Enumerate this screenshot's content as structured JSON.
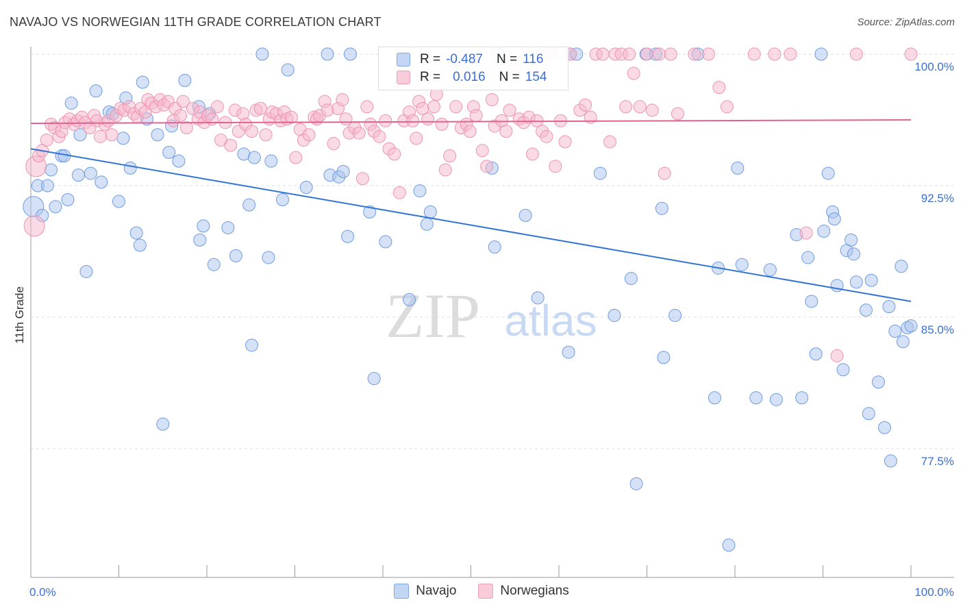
{
  "header": {
    "title": "NAVAJO VS NORWEGIAN 11TH GRADE CORRELATION CHART",
    "source": "Source: ZipAtlas.com"
  },
  "watermark": {
    "zip": "ZIP",
    "atlas": "atlas"
  },
  "legend_top": {
    "rows": [
      {
        "r_label": "R =",
        "r_value": "-0.487",
        "n_label": "N =",
        "n_value": "116"
      },
      {
        "r_label": "R =",
        "r_value": "0.016",
        "n_label": "N =",
        "n_value": "154"
      }
    ]
  },
  "colors": {
    "navajo_fill": "#a9c4ee",
    "navajo_stroke": "#6e9be0",
    "navajo_line": "#3274d3",
    "norwegian_fill": "#f6b7cb",
    "norwegian_stroke": "#ec94b1",
    "norwegian_line": "#e2628f",
    "tick_label": "#3b6fd1",
    "grid": "#dddddd"
  },
  "chart_data": {
    "type": "scatter",
    "title": "NAVAJO VS NORWEGIAN 11TH GRADE CORRELATION CHART",
    "xlabel": "",
    "ylabel": "11th Grade",
    "xlim": [
      0,
      100
    ],
    "ylim": [
      71,
      101.5
    ],
    "x_tick_labels": [
      {
        "value": 0,
        "label": "0.0%"
      },
      {
        "value": 100,
        "label": "100.0%"
      }
    ],
    "y_tick_labels": [
      {
        "value": 100,
        "label": "100.0%"
      },
      {
        "value": 92.5,
        "label": "92.5%"
      },
      {
        "value": 85,
        "label": "85.0%"
      },
      {
        "value": 77.5,
        "label": "77.5%"
      }
    ],
    "grid": "horizontal dashed",
    "legend_position": "bottom-center",
    "series": [
      {
        "name": "Navajo",
        "r": -0.487,
        "n": 116,
        "trend": {
          "x": [
            0,
            100
          ],
          "y": [
            94.6,
            85.9
          ]
        },
        "points": [
          [
            0.3,
            91.3
          ],
          [
            0.8,
            92.5
          ],
          [
            1.3,
            90.8
          ],
          [
            1.9,
            92.5
          ],
          [
            2.3,
            93.4
          ],
          [
            2.8,
            91.3
          ],
          [
            3.5,
            94.2
          ],
          [
            3.8,
            94.2
          ],
          [
            4.2,
            91.7
          ],
          [
            4.6,
            97.2
          ],
          [
            5.4,
            93.1
          ],
          [
            5.6,
            95.4
          ],
          [
            6.3,
            87.6
          ],
          [
            6.8,
            93.2
          ],
          [
            7.4,
            97.9
          ],
          [
            8.0,
            92.7
          ],
          [
            8.9,
            96.7
          ],
          [
            9.3,
            96.6
          ],
          [
            10.0,
            91.6
          ],
          [
            10.5,
            95.2
          ],
          [
            10.8,
            97.5
          ],
          [
            11.3,
            93.5
          ],
          [
            12.0,
            89.8
          ],
          [
            12.4,
            89.1
          ],
          [
            12.7,
            98.4
          ],
          [
            13.2,
            96.3
          ],
          [
            14.4,
            95.4
          ],
          [
            15.0,
            78.9
          ],
          [
            15.7,
            94.4
          ],
          [
            16.0,
            95.9
          ],
          [
            16.8,
            93.9
          ],
          [
            17.5,
            98.5
          ],
          [
            19.1,
            97.0
          ],
          [
            19.2,
            89.4
          ],
          [
            19.6,
            90.2
          ],
          [
            20.3,
            96.6
          ],
          [
            20.8,
            88.0
          ],
          [
            22.4,
            90.1
          ],
          [
            23.3,
            88.5
          ],
          [
            24.2,
            94.3
          ],
          [
            24.8,
            91.4
          ],
          [
            25.1,
            83.4
          ],
          [
            25.4,
            94.1
          ],
          [
            26.3,
            100.0
          ],
          [
            27.0,
            88.4
          ],
          [
            27.3,
            93.9
          ],
          [
            28.6,
            91.7
          ],
          [
            29.2,
            99.1
          ],
          [
            31.3,
            92.4
          ],
          [
            33.7,
            100.0
          ],
          [
            34.0,
            93.1
          ],
          [
            35.0,
            93.0
          ],
          [
            35.5,
            93.3
          ],
          [
            36.0,
            89.6
          ],
          [
            36.3,
            100.0
          ],
          [
            38.5,
            91.0
          ],
          [
            39.0,
            81.5
          ],
          [
            40.3,
            89.3
          ],
          [
            43.0,
            86.0
          ],
          [
            44.2,
            92.2
          ],
          [
            45.0,
            90.3
          ],
          [
            45.4,
            91.0
          ],
          [
            52.4,
            93.5
          ],
          [
            52.7,
            89.0
          ],
          [
            53.0,
            100.0
          ],
          [
            56.2,
            90.8
          ],
          [
            57.6,
            86.1
          ],
          [
            61.1,
            83.0
          ],
          [
            61.3,
            100.0
          ],
          [
            62.0,
            100.0
          ],
          [
            64.7,
            93.2
          ],
          [
            66.3,
            85.1
          ],
          [
            68.2,
            87.2
          ],
          [
            68.8,
            75.5
          ],
          [
            69.9,
            100.0
          ],
          [
            71.0,
            100.0
          ],
          [
            71.7,
            91.2
          ],
          [
            71.9,
            82.7
          ],
          [
            73.2,
            85.1
          ],
          [
            75.8,
            100.0
          ],
          [
            77.7,
            80.4
          ],
          [
            78.1,
            87.8
          ],
          [
            79.3,
            72.0
          ],
          [
            80.3,
            93.5
          ],
          [
            80.8,
            88.0
          ],
          [
            82.4,
            80.4
          ],
          [
            84.0,
            87.7
          ],
          [
            84.7,
            80.3
          ],
          [
            87.0,
            89.7
          ],
          [
            87.6,
            80.4
          ],
          [
            88.3,
            88.4
          ],
          [
            88.7,
            85.9
          ],
          [
            89.2,
            82.9
          ],
          [
            89.8,
            100.0
          ],
          [
            90.1,
            89.9
          ],
          [
            90.6,
            93.2
          ],
          [
            91.1,
            91.0
          ],
          [
            91.3,
            90.6
          ],
          [
            91.6,
            86.8
          ],
          [
            92.3,
            82.0
          ],
          [
            92.7,
            88.8
          ],
          [
            93.2,
            89.4
          ],
          [
            93.5,
            88.6
          ],
          [
            93.8,
            87.0
          ],
          [
            94.9,
            85.4
          ],
          [
            95.2,
            79.5
          ],
          [
            95.5,
            87.1
          ],
          [
            96.3,
            81.3
          ],
          [
            97.0,
            78.7
          ],
          [
            97.5,
            85.6
          ],
          [
            97.7,
            76.8
          ],
          [
            98.2,
            84.2
          ],
          [
            98.9,
            87.9
          ],
          [
            99.1,
            83.6
          ],
          [
            99.6,
            84.4
          ],
          [
            100.0,
            84.5
          ]
        ]
      },
      {
        "name": "Norwegians",
        "r": 0.016,
        "n": 154,
        "trend": {
          "x": [
            0,
            100
          ],
          "y": [
            96.05,
            96.25
          ]
        },
        "points": [
          [
            0.4,
            90.2
          ],
          [
            0.6,
            93.6
          ],
          [
            0.9,
            94.2
          ],
          [
            1.3,
            94.5
          ],
          [
            1.8,
            95.1
          ],
          [
            2.3,
            96.0
          ],
          [
            2.7,
            95.8
          ],
          [
            3.2,
            95.3
          ],
          [
            3.5,
            95.6
          ],
          [
            3.9,
            96.1
          ],
          [
            4.4,
            96.3
          ],
          [
            4.9,
            96.0
          ],
          [
            5.3,
            96.2
          ],
          [
            5.8,
            96.4
          ],
          [
            6.2,
            96.1
          ],
          [
            6.7,
            95.8
          ],
          [
            7.2,
            96.5
          ],
          [
            7.5,
            96.2
          ],
          [
            7.9,
            95.3
          ],
          [
            8.4,
            96.0
          ],
          [
            8.8,
            96.2
          ],
          [
            9.2,
            95.4
          ],
          [
            9.7,
            96.5
          ],
          [
            10.2,
            96.9
          ],
          [
            10.6,
            96.8
          ],
          [
            11.2,
            97.0
          ],
          [
            11.7,
            96.6
          ],
          [
            12.1,
            96.4
          ],
          [
            12.5,
            96.9
          ],
          [
            13.0,
            96.7
          ],
          [
            13.3,
            97.4
          ],
          [
            13.7,
            97.2
          ],
          [
            14.2,
            97.0
          ],
          [
            14.7,
            97.4
          ],
          [
            15.1,
            97.1
          ],
          [
            15.6,
            97.3
          ],
          [
            16.2,
            96.2
          ],
          [
            16.4,
            96.9
          ],
          [
            17.0,
            96.5
          ],
          [
            17.3,
            97.3
          ],
          [
            17.7,
            95.8
          ],
          [
            18.4,
            96.9
          ],
          [
            19.0,
            96.3
          ],
          [
            19.2,
            96.7
          ],
          [
            19.7,
            96.1
          ],
          [
            20.1,
            96.5
          ],
          [
            20.6,
            96.3
          ],
          [
            21.2,
            97.0
          ],
          [
            21.6,
            95.1
          ],
          [
            22.1,
            96.1
          ],
          [
            22.7,
            94.8
          ],
          [
            23.2,
            96.8
          ],
          [
            23.6,
            95.6
          ],
          [
            24.1,
            96.6
          ],
          [
            24.4,
            96.0
          ],
          [
            25.1,
            95.6
          ],
          [
            25.6,
            96.8
          ],
          [
            26.1,
            96.9
          ],
          [
            26.7,
            95.4
          ],
          [
            27.1,
            96.3
          ],
          [
            27.4,
            96.7
          ],
          [
            27.9,
            96.6
          ],
          [
            28.4,
            96.2
          ],
          [
            28.8,
            96.7
          ],
          [
            29.1,
            96.3
          ],
          [
            29.6,
            96.4
          ],
          [
            30.1,
            94.1
          ],
          [
            30.6,
            95.7
          ],
          [
            31.0,
            95.1
          ],
          [
            31.6,
            95.4
          ],
          [
            32.2,
            96.4
          ],
          [
            32.5,
            96.3
          ],
          [
            32.8,
            96.5
          ],
          [
            33.4,
            97.3
          ],
          [
            33.7,
            96.8
          ],
          [
            34.4,
            94.9
          ],
          [
            34.9,
            96.9
          ],
          [
            35.4,
            97.4
          ],
          [
            35.8,
            96.3
          ],
          [
            36.2,
            95.5
          ],
          [
            36.8,
            95.8
          ],
          [
            37.3,
            95.5
          ],
          [
            37.7,
            92.9
          ],
          [
            38.2,
            97.0
          ],
          [
            38.6,
            96.0
          ],
          [
            39.0,
            95.6
          ],
          [
            39.6,
            95.3
          ],
          [
            40.3,
            96.2
          ],
          [
            40.7,
            94.6
          ],
          [
            41.3,
            94.3
          ],
          [
            41.9,
            92.1
          ],
          [
            42.4,
            96.2
          ],
          [
            43.0,
            96.7
          ],
          [
            43.4,
            96.2
          ],
          [
            43.8,
            95.2
          ],
          [
            44.1,
            97.3
          ],
          [
            44.5,
            96.9
          ],
          [
            45.1,
            96.3
          ],
          [
            45.8,
            97.0
          ],
          [
            46.1,
            97.7
          ],
          [
            46.7,
            96.0
          ],
          [
            47.1,
            93.4
          ],
          [
            47.6,
            94.2
          ],
          [
            48.3,
            97.0
          ],
          [
            48.9,
            95.8
          ],
          [
            49.5,
            96.0
          ],
          [
            49.9,
            95.6
          ],
          [
            50.3,
            97.0
          ],
          [
            50.6,
            96.5
          ],
          [
            51.3,
            94.5
          ],
          [
            51.8,
            93.6
          ],
          [
            52.4,
            97.4
          ],
          [
            52.7,
            95.9
          ],
          [
            53.5,
            96.2
          ],
          [
            54.0,
            95.6
          ],
          [
            54.4,
            96.8
          ],
          [
            55.0,
            99.2
          ],
          [
            55.5,
            96.3
          ],
          [
            56.0,
            96.1
          ],
          [
            56.6,
            96.4
          ],
          [
            57.0,
            94.3
          ],
          [
            57.5,
            96.2
          ],
          [
            58.1,
            95.6
          ],
          [
            58.6,
            95.3
          ],
          [
            59.1,
            100.0
          ],
          [
            59.6,
            93.6
          ],
          [
            60.2,
            96.2
          ],
          [
            60.7,
            95.0
          ],
          [
            61.3,
            100.0
          ],
          [
            62.4,
            96.8
          ],
          [
            63.0,
            97.1
          ],
          [
            63.6,
            96.4
          ],
          [
            64.2,
            100.0
          ],
          [
            65.0,
            100.0
          ],
          [
            65.8,
            95.0
          ],
          [
            66.4,
            100.0
          ],
          [
            67.1,
            100.0
          ],
          [
            67.6,
            97.0
          ],
          [
            68.0,
            100.0
          ],
          [
            68.5,
            98.9
          ],
          [
            69.2,
            97.0
          ],
          [
            70.0,
            100.0
          ],
          [
            70.6,
            96.8
          ],
          [
            71.4,
            100.0
          ],
          [
            72.0,
            93.2
          ],
          [
            72.7,
            100.0
          ],
          [
            73.5,
            96.6
          ],
          [
            75.4,
            100.0
          ],
          [
            77.0,
            100.0
          ],
          [
            78.2,
            98.1
          ],
          [
            79.1,
            97.0
          ],
          [
            82.2,
            100.0
          ],
          [
            84.5,
            100.0
          ],
          [
            86.3,
            100.0
          ],
          [
            88.1,
            89.8
          ],
          [
            91.6,
            82.8
          ],
          [
            93.8,
            100.0
          ],
          [
            100.0,
            100.0
          ]
        ]
      }
    ]
  },
  "legend_bottom": {
    "items": [
      {
        "label": "Navajo"
      },
      {
        "label": "Norwegians"
      }
    ]
  }
}
